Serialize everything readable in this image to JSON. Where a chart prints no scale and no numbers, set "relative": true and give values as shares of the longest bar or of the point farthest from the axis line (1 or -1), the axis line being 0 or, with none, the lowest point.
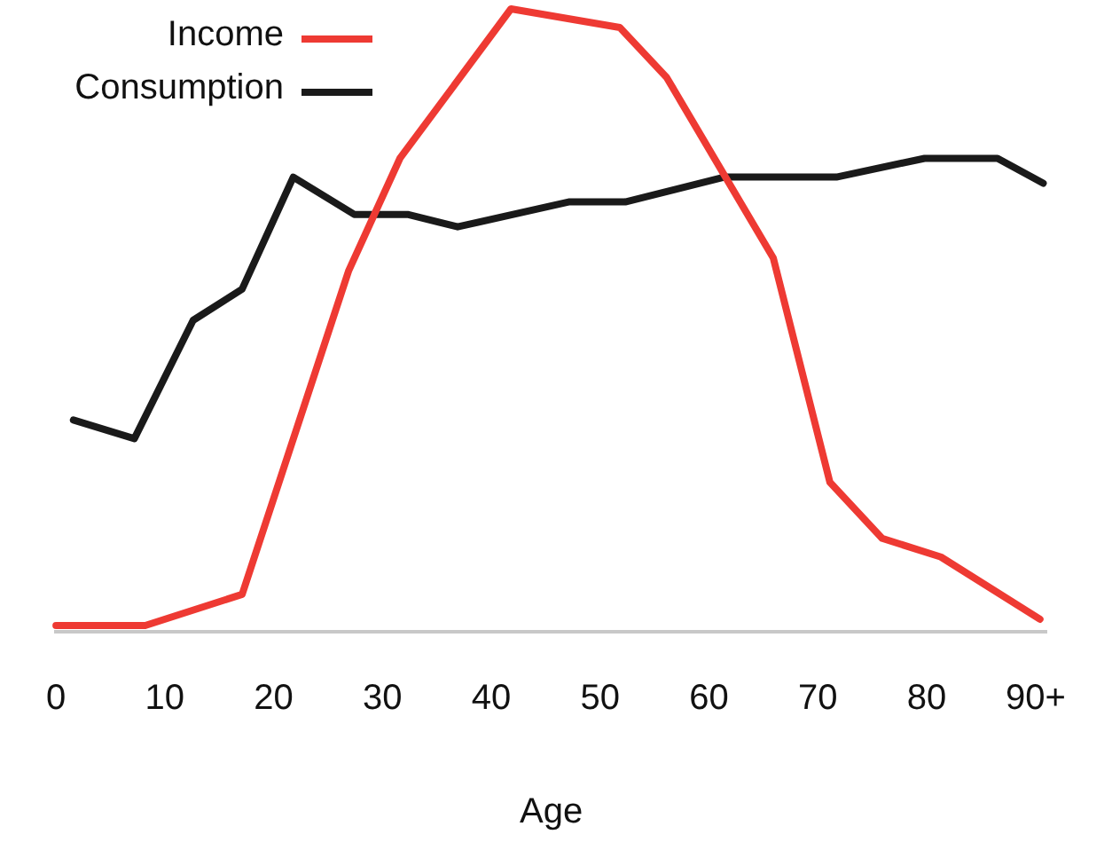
{
  "chart_data": {
    "type": "line",
    "xlabel": "Age",
    "relative": true,
    "legend": "top left",
    "marker": "none",
    "line_style": "solid",
    "grid": false,
    "xlim": [
      0,
      91
    ],
    "xticks": [
      0,
      10,
      20,
      30,
      40,
      50,
      60,
      70,
      80,
      {
        "value": 90,
        "label": "90+"
      }
    ],
    "series": [
      {
        "name": "Income",
        "color": "#ee3a33",
        "x": [
          0,
          8.2,
          17.1,
          26.9,
          31.6,
          41.8,
          51.8,
          56.1,
          65.9,
          71.1,
          75.9,
          81.3,
          90.4
        ],
        "values": [
          0.01,
          0.01,
          0.06,
          0.58,
          0.76,
          1,
          0.97,
          0.89,
          0.6,
          0.24,
          0.15,
          0.12,
          0.02
        ]
      },
      {
        "name": "Consumption",
        "color": "#1a1a1a",
        "x": [
          1.6,
          7.2,
          12.6,
          17.1,
          21.8,
          27.4,
          32.3,
          36.9,
          47.1,
          52.3,
          61.4,
          71.7,
          79.8,
          86.5,
          90.7
        ],
        "values": [
          0.34,
          0.31,
          0.5,
          0.55,
          0.73,
          0.67,
          0.67,
          0.65,
          0.69,
          0.69,
          0.73,
          0.73,
          0.76,
          0.76,
          0.72
        ]
      }
    ]
  }
}
